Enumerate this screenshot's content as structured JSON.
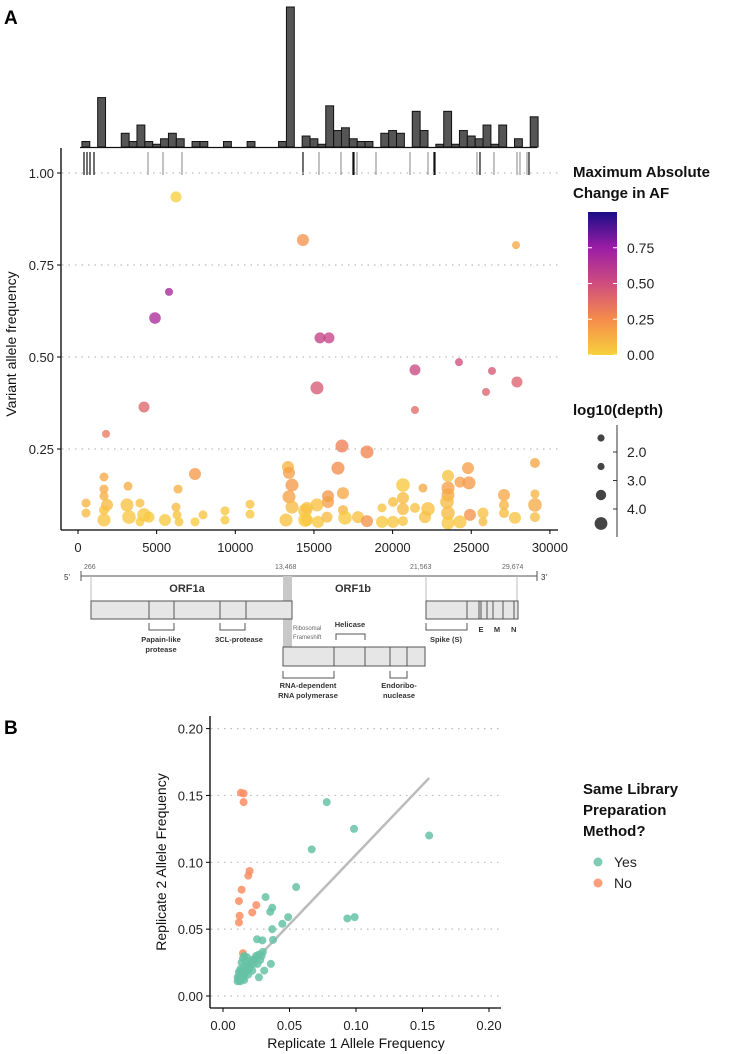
{
  "chart_data": [
    {
      "type": "scatter",
      "panel_label": "A",
      "ylabel": "Variant allele frequency",
      "xlabel": "",
      "xlim": [
        0,
        30000
      ],
      "ylim": [
        0,
        1
      ],
      "xticks": [
        0,
        5000,
        10000,
        15000,
        20000,
        25000,
        30000
      ],
      "xtick_labels": [
        "0",
        "5000",
        "10000",
        "15000",
        "20000",
        "25000",
        "30000"
      ],
      "yticks": [
        0.25,
        0.5,
        0.75,
        1.0
      ],
      "ytick_labels": [
        "0.25",
        "0.50",
        "0.75",
        "1.00"
      ],
      "grid": "horizontal dotted",
      "point_fields": [
        "position",
        "allele_frequency",
        "max_abs_change_AF",
        "log10_depth"
      ],
      "points": [
        [
          6230,
          0.935,
          0.01,
          3.5
        ],
        [
          14300,
          0.818,
          0.22,
          4.0
        ],
        [
          27845,
          0.804,
          0.15,
          2.0
        ],
        [
          5785,
          0.677,
          0.7,
          2.0
        ],
        [
          4895,
          0.606,
          0.68,
          3.8
        ],
        [
          15384,
          0.552,
          0.56,
          3.5
        ],
        [
          15956,
          0.552,
          0.55,
          3.5
        ],
        [
          15193,
          0.416,
          0.45,
          4.5
        ],
        [
          21423,
          0.465,
          0.52,
          3.5
        ],
        [
          24220,
          0.486,
          0.5,
          2.0
        ],
        [
          26318,
          0.462,
          0.46,
          2.0
        ],
        [
          25937,
          0.405,
          0.42,
          2.0
        ],
        [
          27907,
          0.432,
          0.42,
          3.5
        ],
        [
          21423,
          0.356,
          0.38,
          2.0
        ],
        [
          4196,
          0.364,
          0.4,
          3.5
        ],
        [
          1780,
          0.291,
          0.33,
          2.0
        ],
        [
          16782,
          0.258,
          0.3,
          4.5
        ],
        [
          18372,
          0.242,
          0.28,
          4.5
        ],
        [
          16528,
          0.198,
          0.25,
          4.5
        ],
        [
          7438,
          0.182,
          0.2,
          4.0
        ],
        [
          509,
          0.103,
          0.1,
          2.5
        ],
        [
          509,
          0.076,
          0.08,
          2.5
        ],
        [
          1653,
          0.174,
          0.15,
          2.5
        ],
        [
          1653,
          0.141,
          0.14,
          2.5
        ],
        [
          1653,
          0.122,
          0.12,
          2.5
        ],
        [
          1844,
          0.098,
          0.08,
          4.0
        ],
        [
          1653,
          0.084,
          0.06,
          3.0
        ],
        [
          1653,
          0.057,
          0.05,
          4.5
        ],
        [
          3179,
          0.149,
          0.13,
          2.5
        ],
        [
          3115,
          0.098,
          0.06,
          4.5
        ],
        [
          3242,
          0.065,
          0.04,
          4.8
        ],
        [
          3941,
          0.103,
          0.06,
          2.5
        ],
        [
          4196,
          0.071,
          0.04,
          4.8
        ],
        [
          4513,
          0.065,
          0.03,
          3.5
        ],
        [
          3941,
          0.052,
          0.03,
          2.5
        ],
        [
          5531,
          0.057,
          0.03,
          4.0
        ],
        [
          6230,
          0.092,
          0.08,
          2.5
        ],
        [
          6357,
          0.141,
          0.12,
          2.5
        ],
        [
          6293,
          0.071,
          0.05,
          2.5
        ],
        [
          6421,
          0.052,
          0.04,
          2.5
        ],
        [
          7438,
          0.052,
          0.02,
          2.5
        ],
        [
          7946,
          0.071,
          0.05,
          2.5
        ],
        [
          9345,
          0.082,
          0.04,
          2.5
        ],
        [
          9345,
          0.057,
          0.03,
          2.5
        ],
        [
          10934,
          0.1,
          0.05,
          2.5
        ],
        [
          10934,
          0.073,
          0.04,
          2.5
        ],
        [
          13350,
          0.201,
          0.1,
          4.0
        ],
        [
          13414,
          0.185,
          0.18,
          4.0
        ],
        [
          13604,
          0.152,
          0.2,
          4.5
        ],
        [
          13414,
          0.12,
          0.17,
          4.5
        ],
        [
          13604,
          0.092,
          0.08,
          4.5
        ],
        [
          13223,
          0.057,
          0.06,
          4.5
        ],
        [
          14431,
          0.082,
          0.04,
          4.8
        ],
        [
          14431,
          0.057,
          0.03,
          4.8
        ],
        [
          14558,
          0.09,
          0.06,
          4.0
        ],
        [
          14558,
          0.057,
          0.04,
          4.0
        ],
        [
          15193,
          0.098,
          0.06,
          4.5
        ],
        [
          15257,
          0.052,
          0.04,
          4.0
        ],
        [
          15893,
          0.122,
          0.2,
          4.0
        ],
        [
          15893,
          0.106,
          0.18,
          4.0
        ],
        [
          15829,
          0.065,
          0.08,
          3.5
        ],
        [
          16846,
          0.13,
          0.15,
          4.0
        ],
        [
          16846,
          0.084,
          0.1,
          3.0
        ],
        [
          16973,
          0.063,
          0.03,
          4.8
        ],
        [
          17800,
          0.065,
          0.06,
          4.0
        ],
        [
          18372,
          0.054,
          0.22,
          4.0
        ],
        [
          19325,
          0.09,
          0.05,
          2.5
        ],
        [
          19325,
          0.052,
          0.03,
          4.0
        ],
        [
          20025,
          0.106,
          0.07,
          3.0
        ],
        [
          20660,
          0.152,
          0.03,
          4.8
        ],
        [
          20660,
          0.117,
          0.08,
          4.0
        ],
        [
          20660,
          0.087,
          0.08,
          4.0
        ],
        [
          20025,
          0.052,
          0.04,
          4.0
        ],
        [
          20660,
          0.054,
          0.05,
          3.0
        ],
        [
          21423,
          0.09,
          0.06,
          3.0
        ],
        [
          21931,
          0.144,
          0.15,
          2.5
        ],
        [
          22250,
          0.087,
          0.06,
          4.8
        ],
        [
          22059,
          0.065,
          0.06,
          4.0
        ],
        [
          23521,
          0.177,
          0.05,
          4.0
        ],
        [
          23521,
          0.144,
          0.18,
          4.5
        ],
        [
          23521,
          0.125,
          0.15,
          4.5
        ],
        [
          23457,
          0.106,
          0.08,
          4.8
        ],
        [
          23521,
          0.076,
          0.08,
          4.8
        ],
        [
          23521,
          0.049,
          0.04,
          4.5
        ],
        [
          24284,
          0.16,
          0.18,
          3.5
        ],
        [
          24793,
          0.198,
          0.18,
          4.0
        ],
        [
          24856,
          0.158,
          0.2,
          4.5
        ],
        [
          24284,
          0.052,
          0.05,
          4.5
        ],
        [
          24920,
          0.071,
          0.22,
          4.0
        ],
        [
          25746,
          0.076,
          0.06,
          3.5
        ],
        [
          25746,
          0.052,
          0.08,
          2.5
        ],
        [
          27081,
          0.125,
          0.15,
          4.0
        ],
        [
          27081,
          0.098,
          0.1,
          3.0
        ],
        [
          27081,
          0.076,
          0.08,
          3.0
        ],
        [
          27780,
          0.063,
          0.05,
          4.0
        ],
        [
          29051,
          0.212,
          0.16,
          3.0
        ],
        [
          29051,
          0.128,
          0.1,
          2.5
        ],
        [
          29051,
          0.098,
          0.14,
          4.8
        ],
        [
          29051,
          0.065,
          0.08,
          3.0
        ]
      ],
      "color_legend": {
        "title_line1": "Maximum Absolute",
        "title_line2": "Change in AF",
        "range": [
          0,
          1
        ],
        "tick_values": [
          0.75,
          0.5,
          0.25,
          0.0
        ],
        "tick_labels": [
          "0.75",
          "0.50",
          "0.25",
          "0.00"
        ],
        "palette": [
          "#F7D13D",
          "#F58C4C",
          "#CF4D7E",
          "#9B1DA6",
          "#1A0D86"
        ]
      },
      "size_legend": {
        "title": "log10(depth)",
        "tick_labels": [
          "2.0",
          "3.0",
          "4.0"
        ],
        "circle_depths": [
          1.6,
          1.6,
          3.2,
          4.4
        ]
      },
      "histogram": {
        "bin_start": 250,
        "bin_width": 500,
        "counts": [
          2,
          0,
          18,
          0,
          0,
          5,
          2,
          8,
          2,
          1,
          3,
          5,
          3,
          0,
          2,
          2,
          0,
          0,
          2,
          0,
          0,
          2,
          0,
          0,
          0,
          2,
          51,
          0,
          4,
          3,
          1,
          15,
          6,
          7,
          3,
          2,
          2,
          0,
          5,
          6,
          5,
          0,
          13,
          6,
          0,
          1,
          13,
          1,
          6,
          4,
          3,
          8,
          1,
          8,
          0,
          3,
          0,
          11
        ]
      },
      "rug": {
        "dark_color": "#111111",
        "light_color": "#999999",
        "positions": [
          381,
          572,
          763,
          1017,
          4450,
          5403,
          6611,
          14303,
          15320,
          16718,
          17481,
          17545,
          17736,
          18944,
          21105,
          22250,
          22631,
          22695,
          25364,
          25555,
          26445,
          27907,
          28098,
          28543,
          28670
        ],
        "dark": [
          1,
          1,
          1,
          1,
          0,
          0,
          0,
          1,
          0,
          0,
          1,
          1,
          0,
          0,
          0,
          0,
          1,
          1,
          0,
          1,
          0,
          0,
          0,
          0,
          1
        ]
      }
    },
    {
      "type": "scatter",
      "panel_label": "B",
      "xlabel": "Replicate 1 Allele Frequency",
      "ylabel": "Replicate 2 Allele Frequency",
      "xlim": [
        0,
        0.2
      ],
      "ylim": [
        0,
        0.2
      ],
      "xtick_labels": [
        "0.00",
        "0.05",
        "0.10",
        "0.15",
        "0.20"
      ],
      "ytick_labels": [
        "0.00",
        "0.05",
        "0.10",
        "0.15",
        "0.20"
      ],
      "ticks": [
        0,
        0.05,
        0.1,
        0.15,
        0.2
      ],
      "grid": "horizontal dotted",
      "legend": {
        "title_lines": [
          "Same Library",
          "Preparation",
          "Method?"
        ],
        "entries": [
          {
            "label": "Yes",
            "color": "#66C2A5"
          },
          {
            "label": "No",
            "color": "#FC8D62"
          }
        ]
      },
      "fit_line": {
        "from": [
          0.01,
          0.012
        ],
        "to": [
          0.155,
          0.163
        ],
        "color": "#BBBBBB"
      },
      "series": [
        {
          "name": "No",
          "points": [
            [
              0.0135,
              0.152
            ],
            [
              0.0155,
              0.1515
            ],
            [
              0.0155,
              0.145
            ],
            [
              0.02,
              0.0935
            ],
            [
              0.019,
              0.09
            ],
            [
              0.014,
              0.0795
            ],
            [
              0.012,
              0.071
            ],
            [
              0.0125,
              0.06
            ],
            [
              0.012,
              0.055
            ],
            [
              0.025,
              0.068
            ],
            [
              0.022,
              0.0625
            ],
            [
              0.015,
              0.032
            ]
          ]
        },
        {
          "name": "Yes",
          "points": [
            [
              0.078,
              0.145
            ],
            [
              0.0985,
              0.125
            ],
            [
              0.0667,
              0.1097
            ],
            [
              0.155,
              0.12
            ],
            [
              0.055,
              0.0815
            ],
            [
              0.032,
              0.074
            ],
            [
              0.037,
              0.066
            ],
            [
              0.0355,
              0.063
            ],
            [
              0.049,
              0.059
            ],
            [
              0.0446,
              0.054
            ],
            [
              0.037,
              0.05
            ],
            [
              0.0376,
              0.042
            ],
            [
              0.0296,
              0.0416
            ],
            [
              0.0256,
              0.0424
            ],
            [
              0.099,
              0.059
            ],
            [
              0.0935,
              0.058
            ],
            [
              0.036,
              0.024
            ],
            [
              0.031,
              0.019
            ],
            [
              0.027,
              0.014
            ],
            [
              0.011,
              0.011
            ],
            [
              0.012,
              0.012
            ],
            [
              0.013,
              0.011
            ],
            [
              0.014,
              0.013
            ],
            [
              0.012,
              0.015
            ],
            [
              0.013,
              0.017
            ],
            [
              0.015,
              0.014
            ],
            [
              0.016,
              0.016
            ],
            [
              0.014,
              0.019
            ],
            [
              0.017,
              0.018
            ],
            [
              0.018,
              0.02
            ],
            [
              0.016,
              0.022
            ],
            [
              0.019,
              0.023
            ],
            [
              0.02,
              0.021
            ],
            [
              0.021,
              0.025
            ],
            [
              0.017,
              0.026
            ],
            [
              0.015,
              0.028
            ],
            [
              0.018,
              0.029
            ],
            [
              0.022,
              0.027
            ],
            [
              0.024,
              0.028
            ],
            [
              0.025,
              0.03
            ],
            [
              0.027,
              0.031
            ],
            [
              0.029,
              0.03
            ],
            [
              0.03,
              0.033
            ],
            [
              0.023,
              0.024
            ],
            [
              0.011,
              0.014
            ],
            [
              0.012,
              0.018
            ],
            [
              0.013,
              0.02
            ],
            [
              0.016,
              0.012
            ],
            [
              0.019,
              0.016
            ],
            [
              0.022,
              0.019
            ],
            [
              0.026,
              0.024
            ],
            [
              0.028,
              0.027
            ],
            [
              0.014,
              0.025
            ],
            [
              0.016,
              0.03
            ]
          ]
        }
      ]
    }
  ],
  "genome_map": {
    "five_prime": "5'",
    "three_prime": "3'",
    "coords": [
      "266",
      "13,468",
      "21,563",
      "29,674"
    ],
    "orf1a": "ORF1a",
    "orf1b": "ORF1b",
    "papain_1": "Papain-like",
    "papain_2": "protease",
    "cl3": "3CL-protease",
    "ribo_1": "Ribosomal",
    "ribo_2": "Frameshift",
    "helicase": "Helicase",
    "spike": "Spike (S)",
    "e": "E",
    "m": "M",
    "n": "N",
    "rdrp_1": "RNA-dependent",
    "rdrp_2": "RNA polymerase",
    "endo_1": "Endoribo-",
    "endo_2": "nuclease"
  }
}
